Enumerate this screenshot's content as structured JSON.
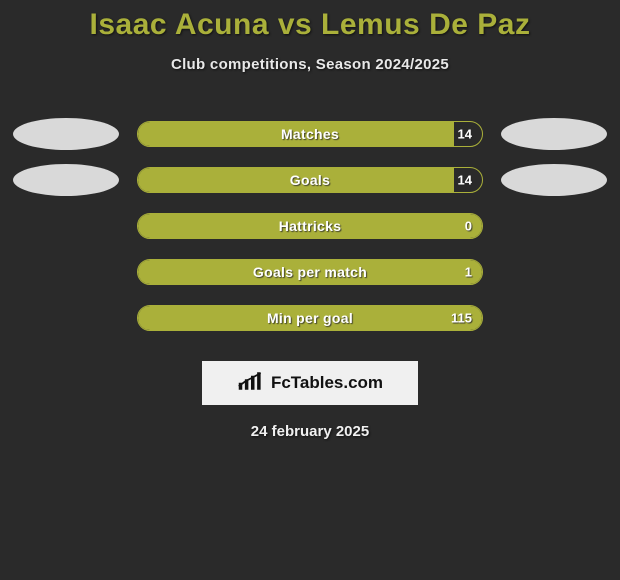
{
  "title": "Isaac Acuna vs Lemus De Paz",
  "subtitle": "Club competitions, Season 2024/2025",
  "colors": {
    "background": "#2a2a2a",
    "accent": "#aab03a",
    "disc": "#d9d9d9",
    "text_light": "#ffffff",
    "brand_bg": "#f0f0f0"
  },
  "rows": [
    {
      "label": "Matches",
      "value": "14",
      "fill_pct": 92,
      "left_disc": true,
      "right_disc": true
    },
    {
      "label": "Goals",
      "value": "14",
      "fill_pct": 92,
      "left_disc": true,
      "right_disc": true
    },
    {
      "label": "Hattricks",
      "value": "0",
      "fill_pct": 100,
      "left_disc": false,
      "right_disc": false
    },
    {
      "label": "Goals per match",
      "value": "1",
      "fill_pct": 100,
      "left_disc": false,
      "right_disc": false
    },
    {
      "label": "Min per goal",
      "value": "115",
      "fill_pct": 100,
      "left_disc": false,
      "right_disc": false
    }
  ],
  "brand": {
    "text_prefix": "Fc",
    "text_suffix": "Tables.com"
  },
  "date": "24 february 2025"
}
